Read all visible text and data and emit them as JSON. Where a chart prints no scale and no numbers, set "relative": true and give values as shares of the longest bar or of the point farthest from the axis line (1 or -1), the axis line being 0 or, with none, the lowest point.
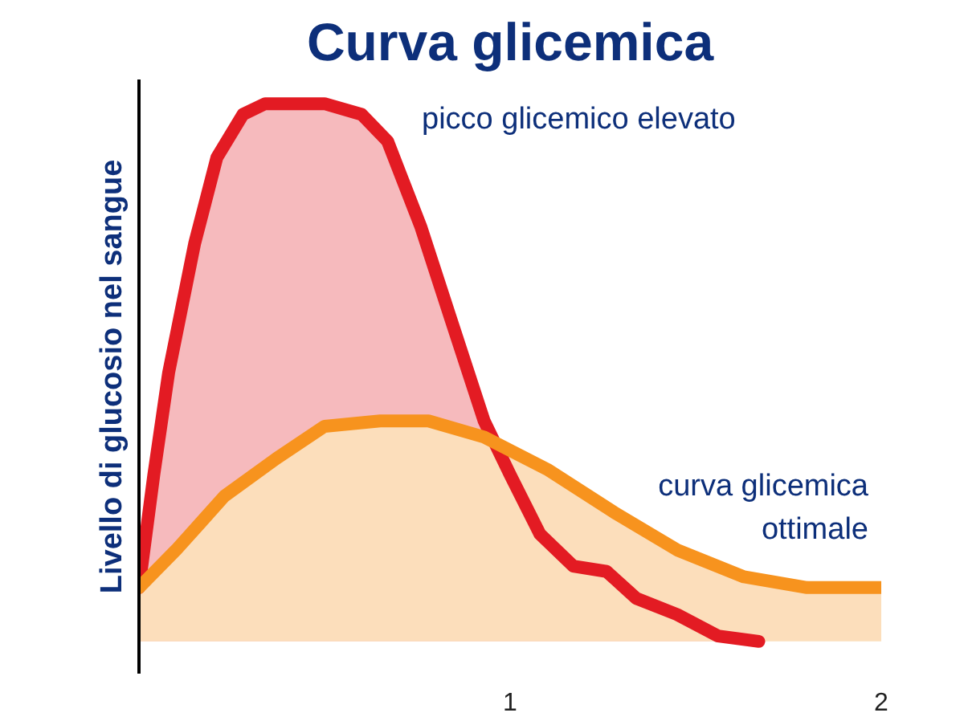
{
  "chart_data": {
    "type": "area",
    "title": "Curva glicemica",
    "ylabel": "Livello di glucosio nel sangue",
    "relative": true,
    "tick_labels": "x",
    "grid": false,
    "xlim": [
      0,
      2
    ],
    "xticks": [
      1,
      2
    ],
    "series": [
      {
        "color": "#e31b23",
        "x": [
          0,
          0.04,
          0.08,
          0.15,
          0.21,
          0.28,
          0.34,
          0.5,
          0.6,
          0.67,
          0.76,
          0.84,
          0.93,
          1.0,
          1.08,
          1.17,
          1.26,
          1.34,
          1.45,
          1.56,
          1.67
        ],
        "values": [
          0.1,
          0.31,
          0.5,
          0.74,
          0.9,
          0.98,
          1,
          1,
          0.98,
          0.93,
          0.77,
          0.6,
          0.41,
          0.31,
          0.2,
          0.14,
          0.13,
          0.08,
          0.05,
          0.01,
          0
        ]
      },
      {
        "color": "#f7931e",
        "x": [
          0,
          0.1,
          0.23,
          0.37,
          0.5,
          0.65,
          0.78,
          0.93,
          1.1,
          1.28,
          1.45,
          1.63,
          1.8,
          2.0
        ],
        "values": [
          0.1,
          0.17,
          0.27,
          0.34,
          0.4,
          0.41,
          0.41,
          0.38,
          0.32,
          0.24,
          0.17,
          0.12,
          0.1,
          0.1
        ]
      }
    ],
    "annotations": [
      "picco glicemico elevato",
      "curva glicemica\nottimale"
    ]
  }
}
